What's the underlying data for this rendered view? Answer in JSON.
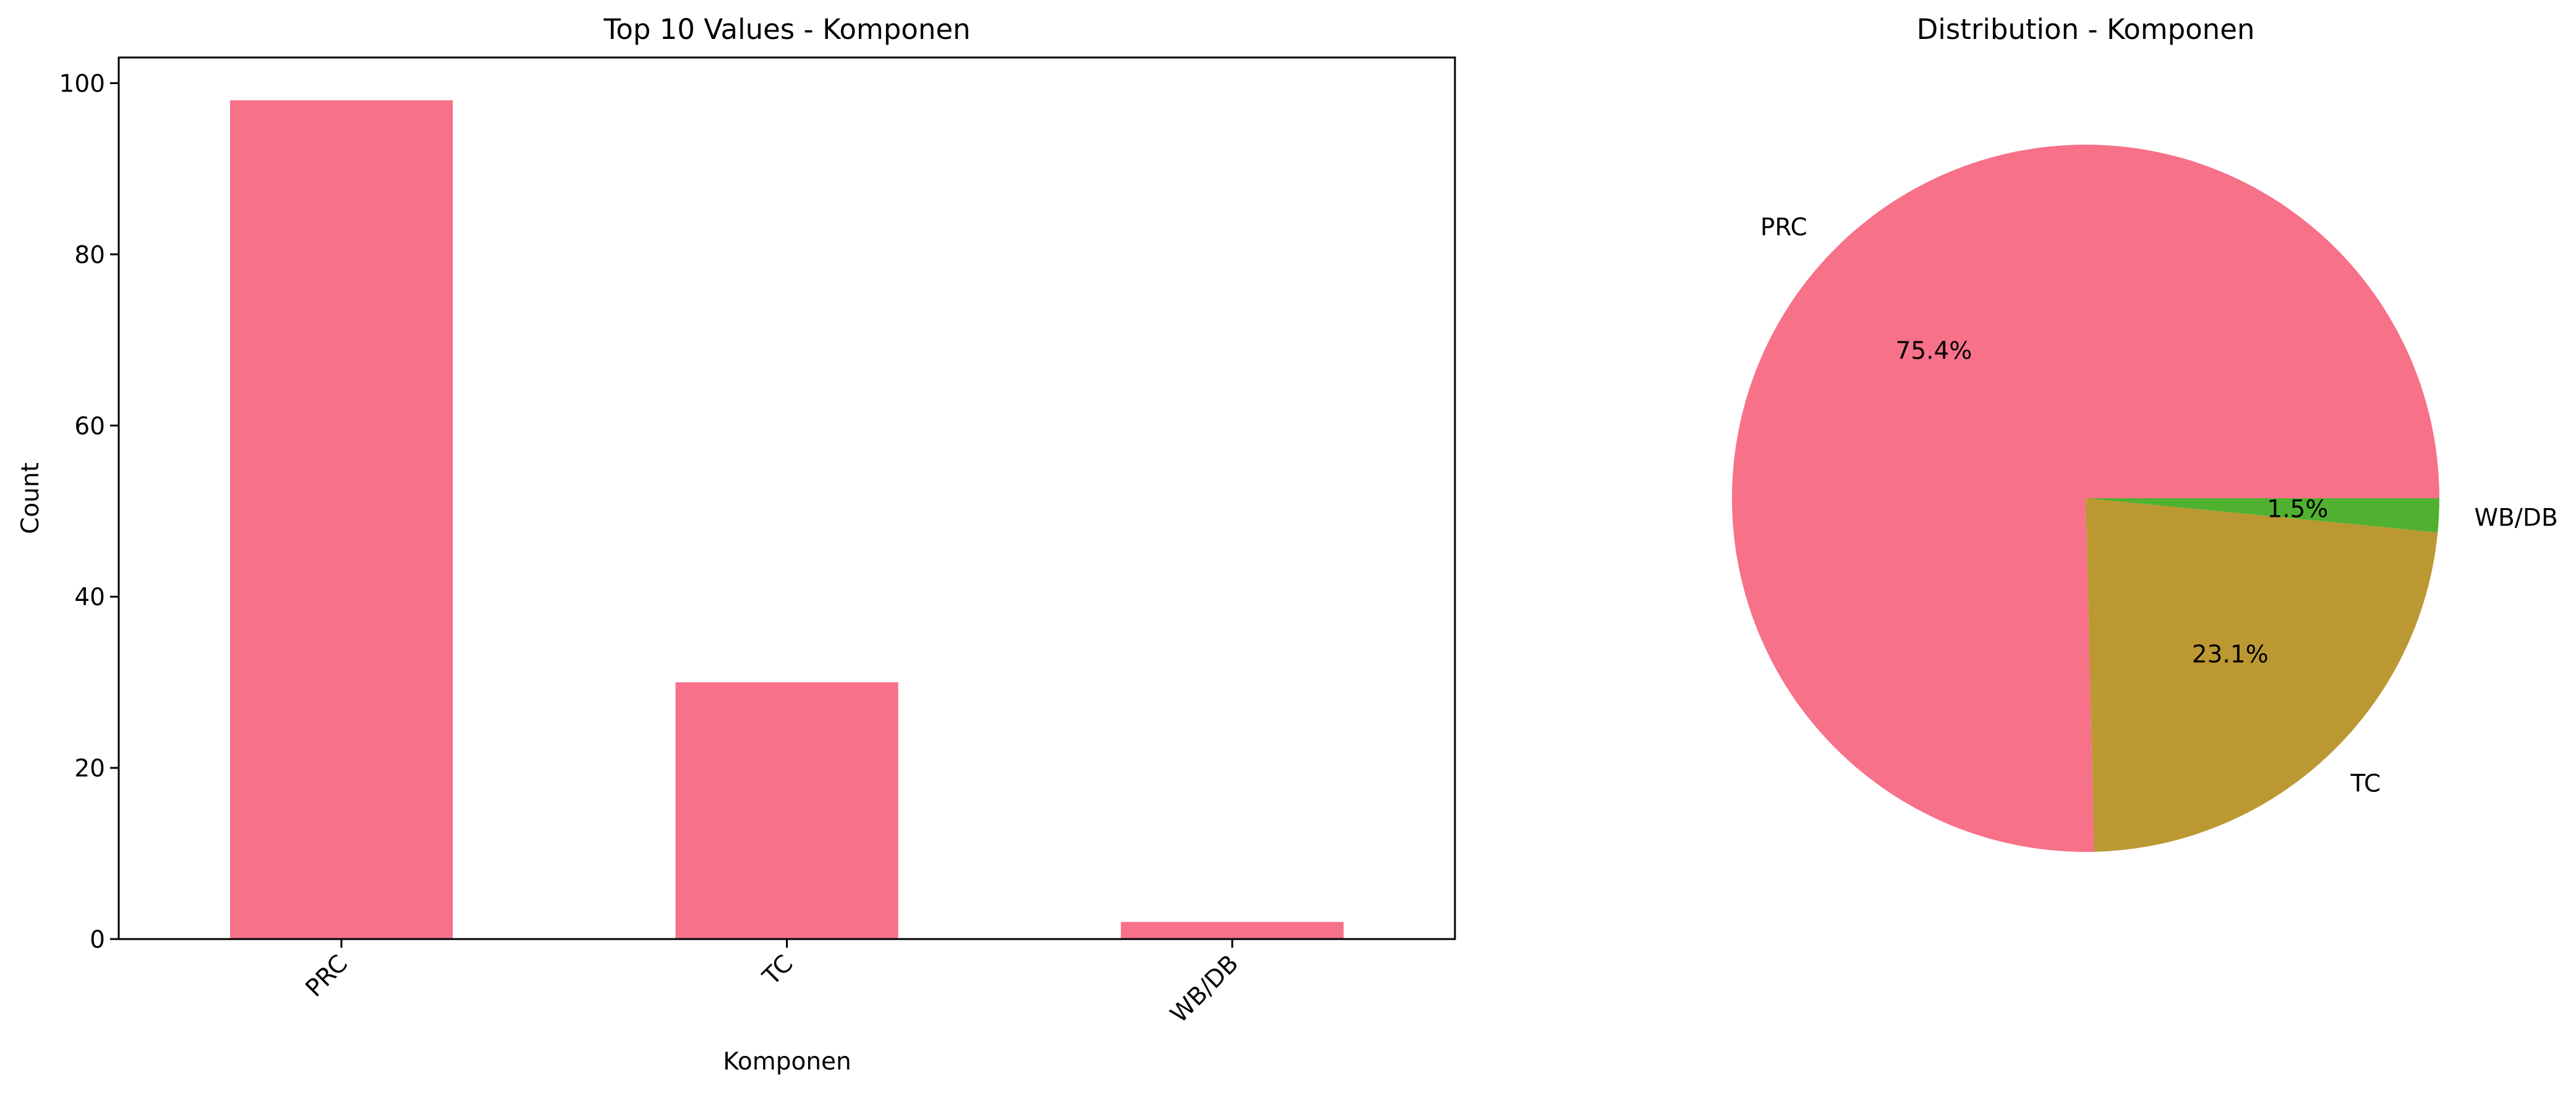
{
  "chart_data": [
    {
      "type": "bar",
      "title": "Top 10 Values - Komponen",
      "xlabel": "Komponen",
      "ylabel": "Count",
      "categories": [
        "PRC",
        "TC",
        "WB/DB"
      ],
      "values": [
        98,
        30,
        2
      ],
      "ylim": [
        0,
        103
      ],
      "yticks": [
        0,
        20,
        40,
        60,
        80,
        100
      ],
      "ytick_labels": [
        "0",
        "20",
        "40",
        "60",
        "80",
        "100"
      ],
      "xtick_rotation_deg": 45,
      "grid": false,
      "color": "#f77189"
    },
    {
      "type": "pie",
      "title": "Distribution - Komponen",
      "labels": [
        "PRC",
        "TC",
        "WB/DB"
      ],
      "values": [
        98,
        30,
        2
      ],
      "percent_labels": [
        "75.4%",
        "23.1%",
        "1.5%"
      ],
      "colors": [
        "#f77189",
        "#bb9832",
        "#50b131"
      ],
      "start_angle_deg": 0,
      "direction": "counterclockwise"
    }
  ]
}
